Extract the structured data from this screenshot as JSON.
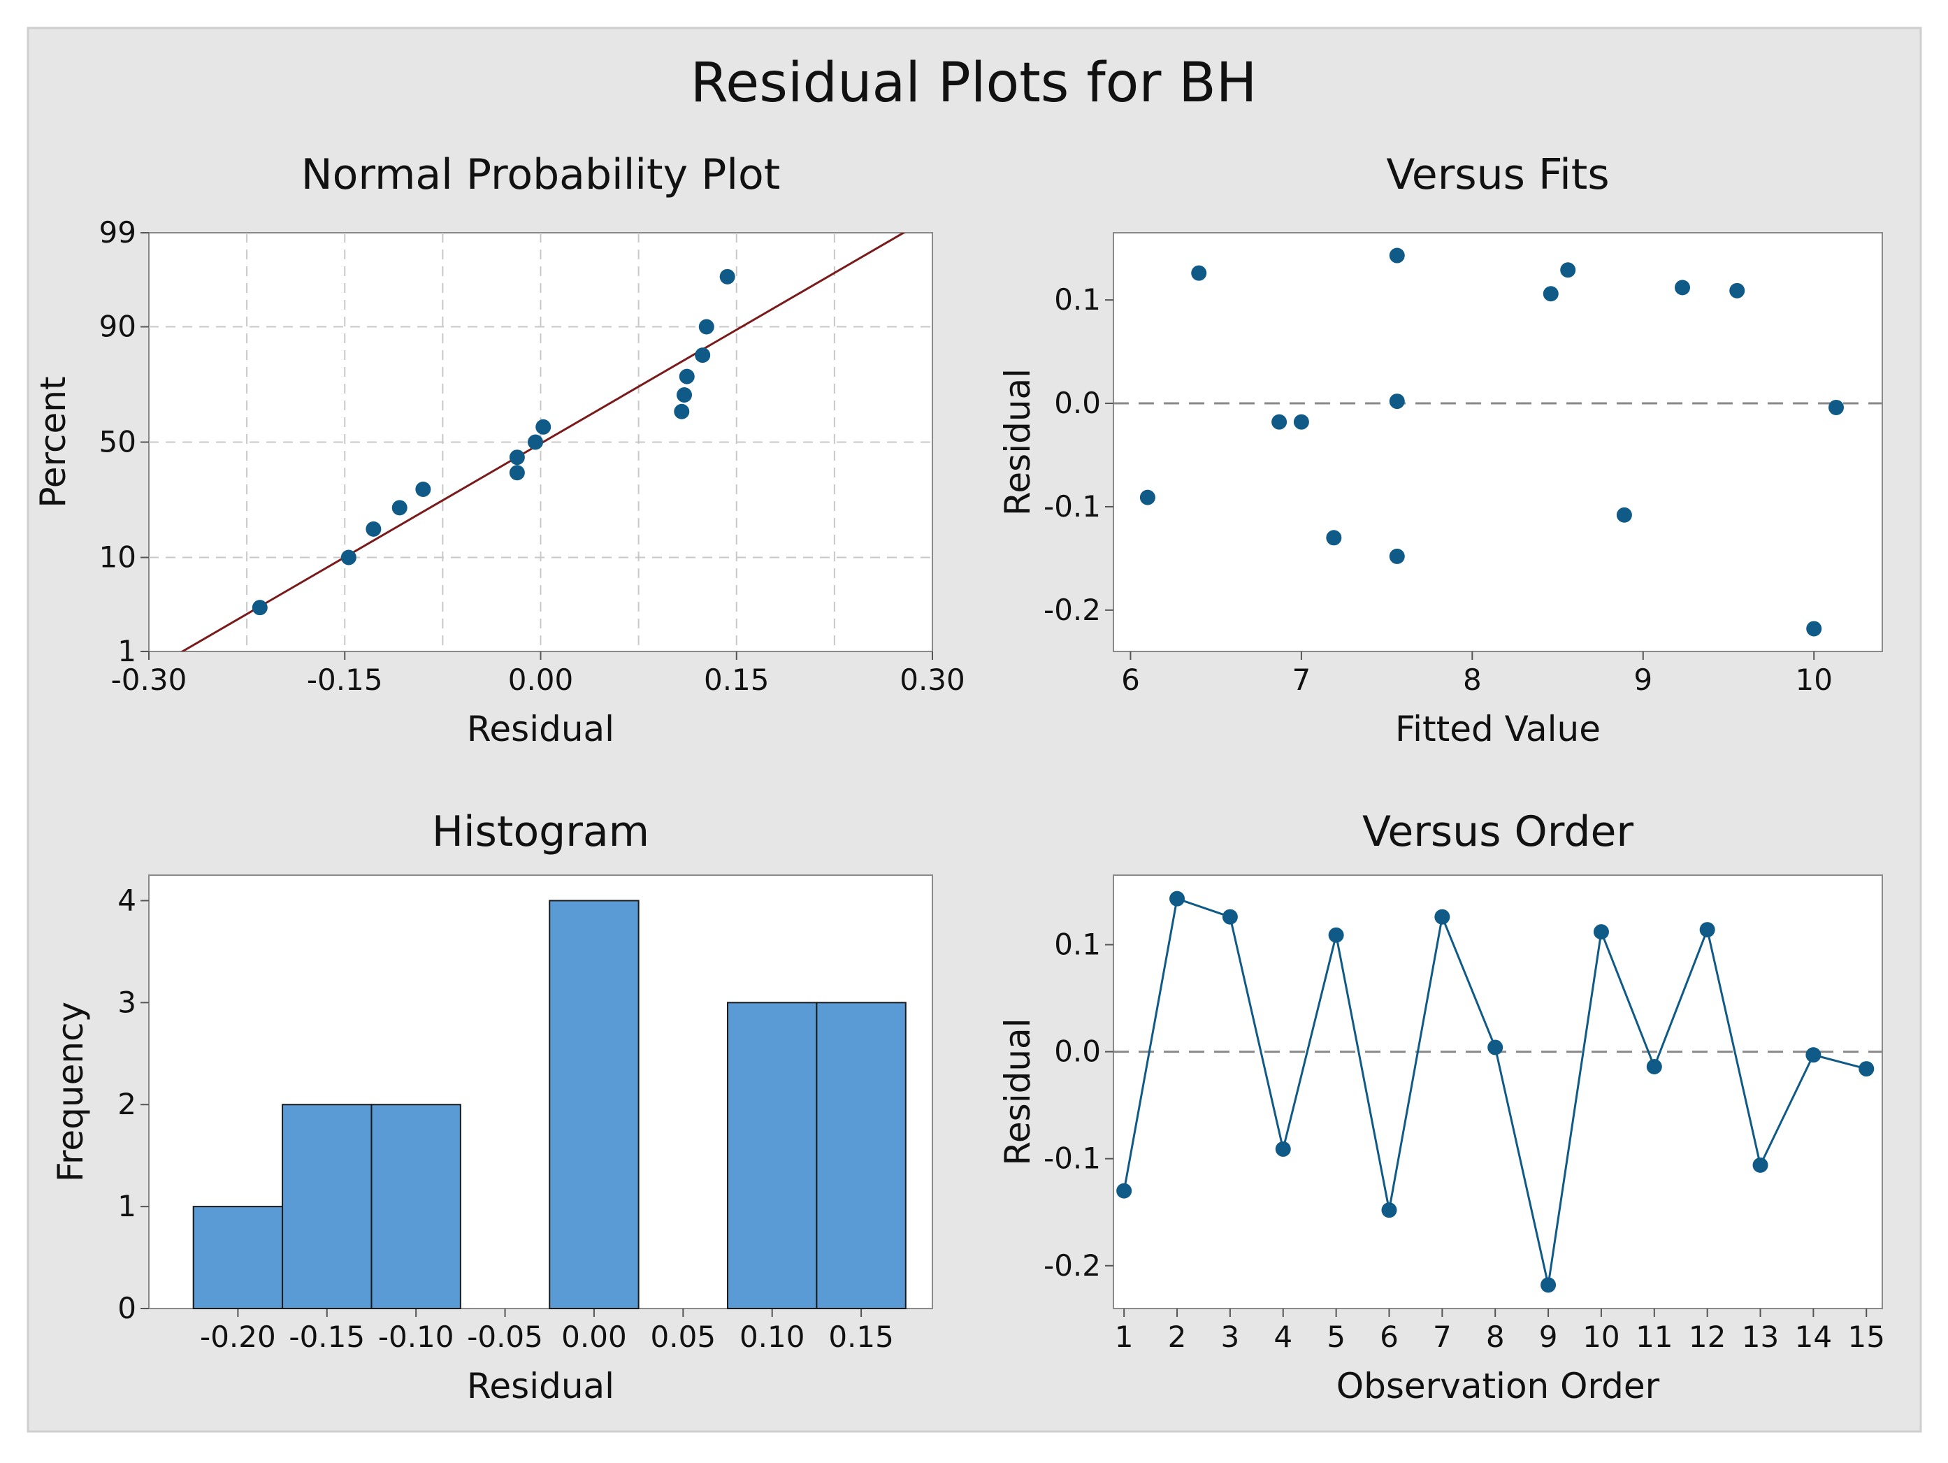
{
  "figure": {
    "title": "Residual Plots for BH",
    "background": "#e6e6e6",
    "panel_background": "#ffffff",
    "marker_color": "#0f5a87",
    "bar_color": "#5b9bd5",
    "fit_line_color": "#7a1b1b"
  },
  "chart_data": [
    {
      "id": "normal",
      "type": "scatter",
      "title": "Normal Probability Plot",
      "xlabel": "Residual",
      "ylabel": "Percent",
      "xlim": [
        -0.3,
        0.3
      ],
      "xticks": [
        -0.3,
        -0.15,
        0.0,
        0.15,
        0.3
      ],
      "xtick_labels": [
        "-0.30",
        "-0.15",
        "0.00",
        "0.15",
        "0.30"
      ],
      "yscale": "normal-probability",
      "ylim": [
        1,
        99
      ],
      "yticks": [
        1,
        10,
        50,
        90,
        99
      ],
      "ytick_labels": [
        "1",
        "10",
        "50",
        "90",
        "99"
      ],
      "grid": true,
      "fit_line": {
        "x": [
          -0.3,
          0.3
        ],
        "percent": [
          0.55,
          99.4
        ]
      },
      "points": [
        {
          "x": -0.215,
          "percent": 3.3
        },
        {
          "x": -0.147,
          "percent": 10
        },
        {
          "x": -0.128,
          "percent": 16.7
        },
        {
          "x": -0.108,
          "percent": 23.3
        },
        {
          "x": -0.09,
          "percent": 30
        },
        {
          "x": -0.018,
          "percent": 36.7
        },
        {
          "x": -0.018,
          "percent": 43.3
        },
        {
          "x": -0.004,
          "percent": 50
        },
        {
          "x": 0.002,
          "percent": 56.7
        },
        {
          "x": 0.108,
          "percent": 63.3
        },
        {
          "x": 0.11,
          "percent": 70
        },
        {
          "x": 0.112,
          "percent": 76.7
        },
        {
          "x": 0.124,
          "percent": 83.3
        },
        {
          "x": 0.127,
          "percent": 90
        },
        {
          "x": 0.143,
          "percent": 96.7
        }
      ]
    },
    {
      "id": "fits",
      "type": "scatter",
      "title": "Versus Fits",
      "xlabel": "Fitted Value",
      "ylabel": "Residual",
      "xlim": [
        5.9,
        10.4
      ],
      "ylim": [
        -0.24,
        0.165
      ],
      "xticks": [
        6,
        7,
        8,
        9,
        10
      ],
      "xtick_labels": [
        "6",
        "7",
        "8",
        "9",
        "10"
      ],
      "yticks": [
        -0.2,
        -0.1,
        0.0,
        0.1
      ],
      "ytick_labels": [
        "-0.2",
        "-0.1",
        "0.0",
        "0.1"
      ],
      "reference_line": 0.0,
      "x": [
        6.1,
        6.4,
        6.87,
        7.0,
        7.19,
        7.56,
        7.56,
        7.56,
        8.46,
        8.56,
        8.89,
        9.23,
        9.55,
        10.0,
        10.13
      ],
      "y": [
        -0.091,
        0.126,
        -0.018,
        -0.018,
        -0.13,
        0.143,
        0.002,
        -0.148,
        0.106,
        0.129,
        -0.108,
        0.112,
        0.109,
        -0.218,
        -0.004
      ]
    },
    {
      "id": "histogram",
      "type": "bar",
      "title": "Histogram",
      "xlabel": "Residual",
      "ylabel": "Frequency",
      "bin_width": 0.05,
      "bin_centers": [
        -0.2,
        -0.15,
        -0.1,
        -0.05,
        0.0,
        0.05,
        0.1,
        0.15
      ],
      "values": [
        1,
        2,
        2,
        0,
        4,
        0,
        3,
        3
      ],
      "xlim": [
        -0.25,
        0.19
      ],
      "ylim": [
        0,
        4.25
      ],
      "xticks": [
        -0.2,
        -0.15,
        -0.1,
        -0.05,
        0.0,
        0.05,
        0.1,
        0.15
      ],
      "xtick_labels": [
        "-0.20",
        "-0.15",
        "-0.10",
        "-0.05",
        "0.00",
        "0.05",
        "0.10",
        "0.15"
      ],
      "yticks": [
        0,
        1,
        2,
        3,
        4
      ],
      "ytick_labels": [
        "0",
        "1",
        "2",
        "3",
        "4"
      ]
    },
    {
      "id": "order",
      "type": "line",
      "title": "Versus Order",
      "xlabel": "Observation Order",
      "ylabel": "Residual",
      "xlim": [
        0.8,
        15.3
      ],
      "ylim": [
        -0.24,
        0.165
      ],
      "xticks": [
        1,
        2,
        3,
        4,
        5,
        6,
        7,
        8,
        9,
        10,
        11,
        12,
        13,
        14,
        15
      ],
      "xtick_labels": [
        "1",
        "2",
        "3",
        "4",
        "5",
        "6",
        "7",
        "8",
        "9",
        "10",
        "11",
        "12",
        "13",
        "14",
        "15"
      ],
      "yticks": [
        -0.2,
        -0.1,
        0.0,
        0.1
      ],
      "ytick_labels": [
        "-0.2",
        "-0.1",
        "0.0",
        "0.1"
      ],
      "reference_line": 0.0,
      "x": [
        1,
        2,
        3,
        4,
        5,
        6,
        7,
        8,
        9,
        10,
        11,
        12,
        13,
        14,
        15
      ],
      "y": [
        -0.13,
        0.143,
        0.126,
        -0.091,
        0.109,
        -0.148,
        0.126,
        0.004,
        -0.218,
        0.112,
        -0.014,
        0.114,
        -0.106,
        -0.003,
        -0.016
      ]
    }
  ]
}
